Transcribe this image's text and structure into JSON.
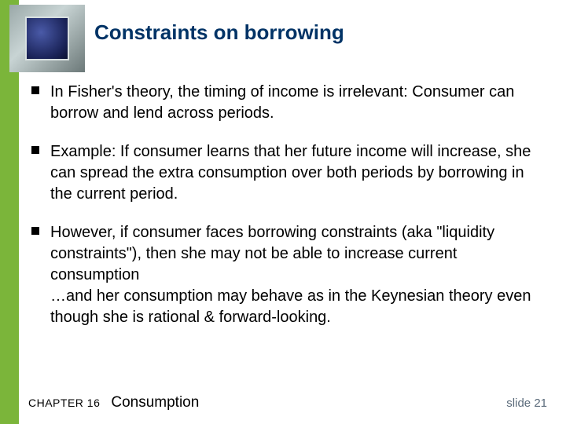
{
  "accent_color": "#7bb53a",
  "title": {
    "text": "Constraints on borrowing",
    "color": "#003366",
    "fontsize": 26
  },
  "body": {
    "color": "#000000",
    "fontsize": 20,
    "bullets": [
      "In Fisher's theory, the timing of income is irrelevant: Consumer can borrow and lend across periods.",
      "Example:  If consumer learns that her future income will increase, she can spread the extra consumption over both periods by borrowing in the current period.",
      "However, if consumer faces borrowing constraints (aka \"liquidity constraints\"), then she may not be able to increase current consumption\n…and her consumption may behave as in the Keynesian theory even though she is rational & forward-looking."
    ]
  },
  "footer": {
    "chapter_label": "CHAPTER 16",
    "chapter_title": "Consumption",
    "slide_label": "slide 21",
    "chapter_fontsize": 14,
    "title_fontsize": 19,
    "slide_fontsize": 15,
    "chapter_color": "#000000",
    "slide_color": "#5a6a7a"
  }
}
